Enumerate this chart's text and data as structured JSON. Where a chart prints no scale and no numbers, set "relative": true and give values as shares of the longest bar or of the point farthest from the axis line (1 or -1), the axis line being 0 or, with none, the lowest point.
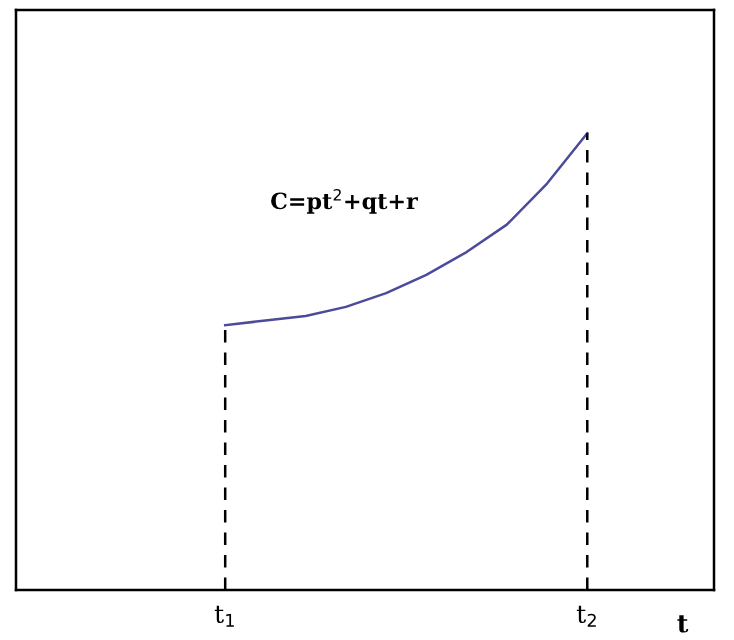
{
  "chart_data": {
    "type": "line",
    "relative": true,
    "xlabel": "t",
    "categories": [
      "t$_{1}$",
      null,
      null,
      null,
      null,
      null,
      null,
      null,
      null,
      "t$_{2}$"
    ],
    "series": [
      {
        "color": "#4b4b9b",
        "values": [
          0.58,
          0.59,
          0.6,
          0.62,
          0.65,
          0.69,
          0.74,
          0.8,
          0.89,
          1
        ]
      }
    ],
    "ref_lines": [
      {
        "axis": "x",
        "value": "t$_{1}$",
        "line_style": "dashed",
        "color": "#000000"
      },
      {
        "axis": "x",
        "value": "t$_{2}$",
        "line_style": "dashed",
        "color": "#000000"
      }
    ],
    "annotations": [
      "C=pt$^{2}$+qt+r"
    ],
    "grid": false
  }
}
